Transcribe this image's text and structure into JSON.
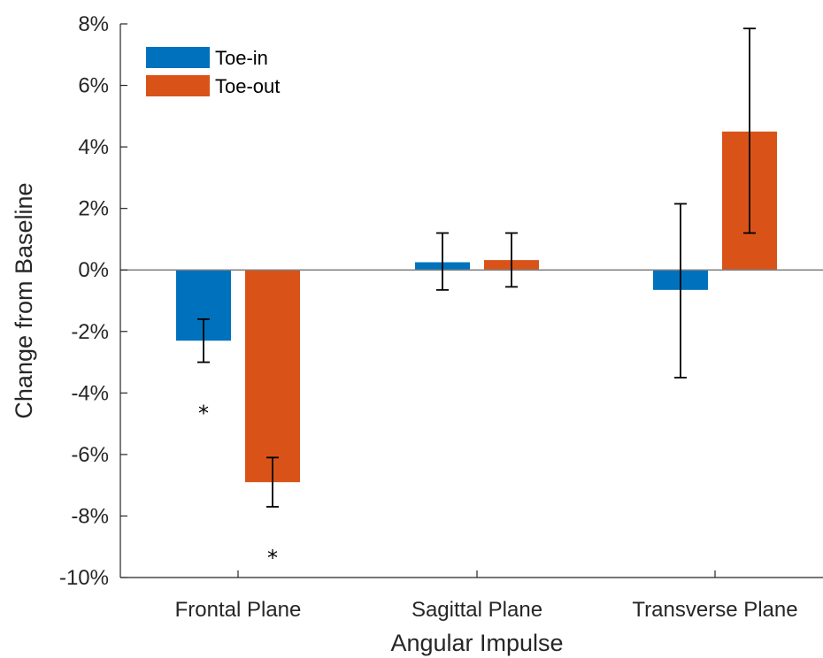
{
  "chart_data": {
    "type": "bar",
    "xlabel": "Angular Impulse",
    "ylabel": "Change from Baseline",
    "ylim": [
      -10,
      8
    ],
    "yticks": [
      -10,
      -8,
      -6,
      -4,
      -2,
      0,
      2,
      4,
      6,
      8
    ],
    "ytick_labels": [
      "-10%",
      "-8%",
      "-6%",
      "-4%",
      "-2%",
      "0%",
      "2%",
      "4%",
      "6%",
      "8%"
    ],
    "categories": [
      "Frontal Plane",
      "Sagittal Plane",
      "Transverse Plane"
    ],
    "series": [
      {
        "name": "Toe-in",
        "color": "#0072BD",
        "values": [
          -2.3,
          0.25,
          -0.65
        ],
        "error_low": [
          -3.0,
          -0.65,
          -3.5
        ],
        "error_high": [
          -1.6,
          1.2,
          2.15
        ]
      },
      {
        "name": "Toe-out",
        "color": "#D95319",
        "values": [
          -6.9,
          0.32,
          4.5
        ],
        "error_low": [
          -7.7,
          -0.55,
          1.2
        ],
        "error_high": [
          -6.1,
          1.2,
          7.85
        ]
      }
    ],
    "annotations": [
      {
        "text": "*",
        "series": 0,
        "category": 0,
        "y": -4.5
      },
      {
        "text": "*",
        "series": 1,
        "category": 0,
        "y": -9.2
      }
    ],
    "legend_position": "top-left",
    "grid": false
  }
}
